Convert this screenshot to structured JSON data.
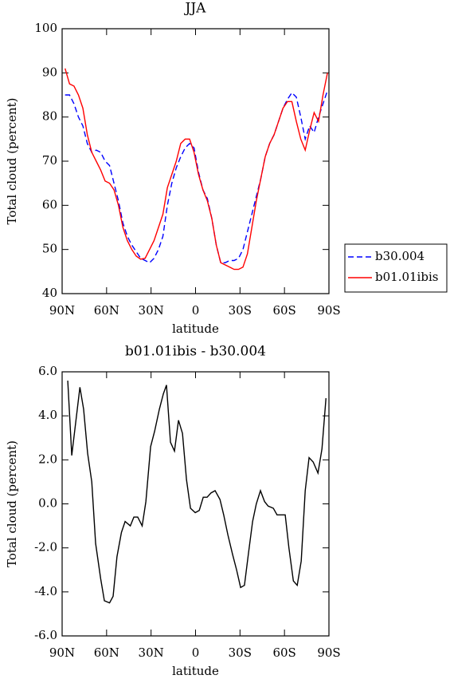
{
  "chart_data": [
    {
      "type": "line",
      "title": "JJA",
      "xlabel": "latitude",
      "ylabel": "Total cloud (percent)",
      "x": [
        88,
        85,
        82,
        79,
        76,
        73,
        70,
        67,
        64,
        61,
        58,
        55,
        52,
        49,
        46,
        43,
        40,
        37,
        34,
        31,
        28,
        25,
        22,
        19,
        16,
        13,
        10,
        7,
        4,
        1,
        -2,
        -5,
        -8,
        -11,
        -14,
        -17,
        -20,
        -23,
        -26,
        -29,
        -32,
        -35,
        -38,
        -41,
        -44,
        -47,
        -50,
        -53,
        -56,
        -59,
        -62,
        -65,
        -68,
        -71,
        -74,
        -77,
        -80,
        -83,
        -86,
        -89
      ],
      "series": [
        {
          "name": "b30.004",
          "color": "#0000ff",
          "style": "dashed",
          "values": [
            85,
            85,
            83,
            80,
            78,
            74,
            72,
            72.5,
            72,
            70,
            69,
            65,
            61,
            56,
            53,
            51,
            49.5,
            48,
            47.5,
            47,
            48,
            50,
            53,
            60,
            65,
            68.5,
            71,
            73,
            74,
            73,
            67.5,
            63.5,
            61.5,
            57,
            51,
            47,
            47,
            47.5,
            47.5,
            48,
            50,
            54,
            58,
            62,
            66,
            71,
            74,
            76,
            79,
            82,
            84,
            85.5,
            84.5,
            80,
            75,
            78,
            76.5,
            80,
            83,
            86
          ]
        },
        {
          "name": "b01.01ibis",
          "color": "#ff0000",
          "style": "solid",
          "values": [
            91,
            87.5,
            87,
            85,
            82,
            76,
            72,
            70,
            68,
            65.5,
            65,
            63.5,
            60,
            55,
            52,
            50,
            48.5,
            47.8,
            48,
            50,
            52,
            55,
            58,
            64,
            67,
            70,
            74,
            75,
            75,
            72,
            67,
            63.5,
            61,
            57,
            51,
            47,
            46.5,
            46,
            45.5,
            45.5,
            46,
            49,
            55,
            61,
            66,
            71,
            74,
            76,
            79,
            82,
            83.5,
            83.5,
            79,
            75,
            72.5,
            77,
            81,
            79,
            85,
            90
          ]
        }
      ],
      "xlim": [
        90,
        -90
      ],
      "xticks": [
        {
          "value": 90,
          "label": "90N"
        },
        {
          "value": 60,
          "label": "60N"
        },
        {
          "value": 30,
          "label": "30N"
        },
        0,
        {
          "value": -30,
          "label": "30S"
        },
        {
          "value": -60,
          "label": "60S"
        },
        {
          "value": -90,
          "label": "90S"
        }
      ],
      "ylim": [
        40,
        100
      ],
      "yticks": [
        40,
        50,
        60,
        70,
        80,
        90,
        100
      ],
      "legend": "right"
    },
    {
      "type": "line",
      "title": "b01.01ibis - b30.004",
      "xlabel": "latitude",
      "ylabel": "Total cloud (percent)",
      "x": [
        86.2,
        83.5,
        78,
        75.5,
        72.8,
        70,
        67.4,
        64,
        61.5,
        58,
        55.6,
        53,
        50,
        47.5,
        44,
        41.6,
        39,
        36,
        33.5,
        30.3,
        27.6,
        24.4,
        21.7,
        19.6,
        16.9,
        14.2,
        11.5,
        8.8,
        6.1,
        3.4,
        0.2,
        -2.5,
        -5.2,
        -7.8,
        -10.5,
        -13.2,
        -16.5,
        -19,
        -21.8,
        -25,
        -27.7,
        -30.4,
        -33,
        -35.8,
        -38.5,
        -41,
        -43.8,
        -46.6,
        -49,
        -52.5,
        -55,
        -57.8,
        -60.5,
        -63,
        -66,
        -68.6,
        -71.3,
        -74,
        -76.6,
        -79.4,
        -82.6,
        -85.3,
        -88
      ],
      "series": [
        {
          "color": "#000000",
          "style": "solid",
          "values": [
            5.6,
            2.2,
            5.3,
            4.3,
            2.3,
            1.0,
            -1.8,
            -3.4,
            -4.4,
            -4.5,
            -4.2,
            -2.4,
            -1.3,
            -0.8,
            -1.0,
            -0.6,
            -0.6,
            -1.0,
            0.1,
            2.6,
            3.3,
            4.3,
            5.0,
            5.4,
            2.8,
            2.4,
            3.8,
            3.2,
            1.1,
            -0.2,
            -0.4,
            -0.3,
            0.3,
            0.3,
            0.5,
            0.6,
            0.2,
            -0.5,
            -1.4,
            -2.3,
            -3.0,
            -3.8,
            -3.7,
            -2.2,
            -0.8,
            0.0,
            0.6,
            0.1,
            -0.1,
            -0.2,
            -0.5,
            -0.5,
            -0.5,
            -2.0,
            -3.5,
            -3.7,
            -2.6,
            0.6,
            2.1,
            1.9,
            1.4,
            2.5,
            4.8
          ]
        }
      ],
      "xlim": [
        90,
        -90
      ],
      "xticks": [
        {
          "value": 90,
          "label": "90N"
        },
        {
          "value": 60,
          "label": "60N"
        },
        {
          "value": 30,
          "label": "30N"
        },
        0,
        {
          "value": -30,
          "label": "30S"
        },
        {
          "value": -60,
          "label": "60S"
        },
        {
          "value": -90,
          "label": "90S"
        }
      ],
      "ylim": [
        -6,
        6
      ],
      "yticks": [
        {
          "value": -6,
          "label": "-6.0"
        },
        {
          "value": -4,
          "label": "-4.0"
        },
        {
          "value": -2,
          "label": "-2.0"
        },
        {
          "value": 0,
          "label": "0.0"
        },
        {
          "value": 2,
          "label": "2.0"
        },
        {
          "value": 4,
          "label": "4.0"
        },
        {
          "value": 6,
          "label": "6.0"
        }
      ]
    }
  ]
}
